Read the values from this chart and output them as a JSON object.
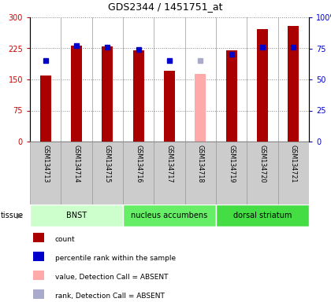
{
  "title": "GDS2344 / 1451751_at",
  "samples": [
    "GSM134713",
    "GSM134714",
    "GSM134715",
    "GSM134716",
    "GSM134717",
    "GSM134718",
    "GSM134719",
    "GSM134720",
    "GSM134721"
  ],
  "counts": [
    160,
    232,
    230,
    220,
    170,
    null,
    220,
    272,
    280
  ],
  "absent_count": [
    null,
    null,
    null,
    null,
    null,
    163,
    null,
    null,
    null
  ],
  "ranks": [
    65,
    77,
    76,
    74,
    65,
    null,
    70,
    76,
    76
  ],
  "absent_rank": [
    null,
    null,
    null,
    null,
    null,
    65,
    null,
    null,
    null
  ],
  "bar_color": "#aa0000",
  "absent_bar_color": "#ffaaaa",
  "rank_color": "#0000cc",
  "absent_rank_color": "#aaaacc",
  "ylim_left": [
    0,
    300
  ],
  "ylim_right": [
    0,
    100
  ],
  "yticks_left": [
    0,
    75,
    150,
    225,
    300
  ],
  "yticks_right": [
    0,
    25,
    50,
    75,
    100
  ],
  "ytick_labels_left": [
    "0",
    "75",
    "150",
    "225",
    "300"
  ],
  "ytick_labels_right": [
    "0",
    "25",
    "50",
    "75",
    "100%"
  ],
  "tissue_groups": [
    {
      "label": "BNST",
      "start": 0,
      "end": 3,
      "color": "#ccffcc"
    },
    {
      "label": "nucleus accumbens",
      "start": 3,
      "end": 6,
      "color": "#66ee66"
    },
    {
      "label": "dorsal striatum",
      "start": 6,
      "end": 9,
      "color": "#44dd44"
    }
  ],
  "legend_items": [
    {
      "color": "#aa0000",
      "label": "count"
    },
    {
      "color": "#0000cc",
      "label": "percentile rank within the sample"
    },
    {
      "color": "#ffaaaa",
      "label": "value, Detection Call = ABSENT"
    },
    {
      "color": "#aaaacc",
      "label": "rank, Detection Call = ABSENT"
    }
  ],
  "bar_width": 0.35,
  "fig_width": 4.2,
  "fig_height": 3.84,
  "dpi": 100
}
